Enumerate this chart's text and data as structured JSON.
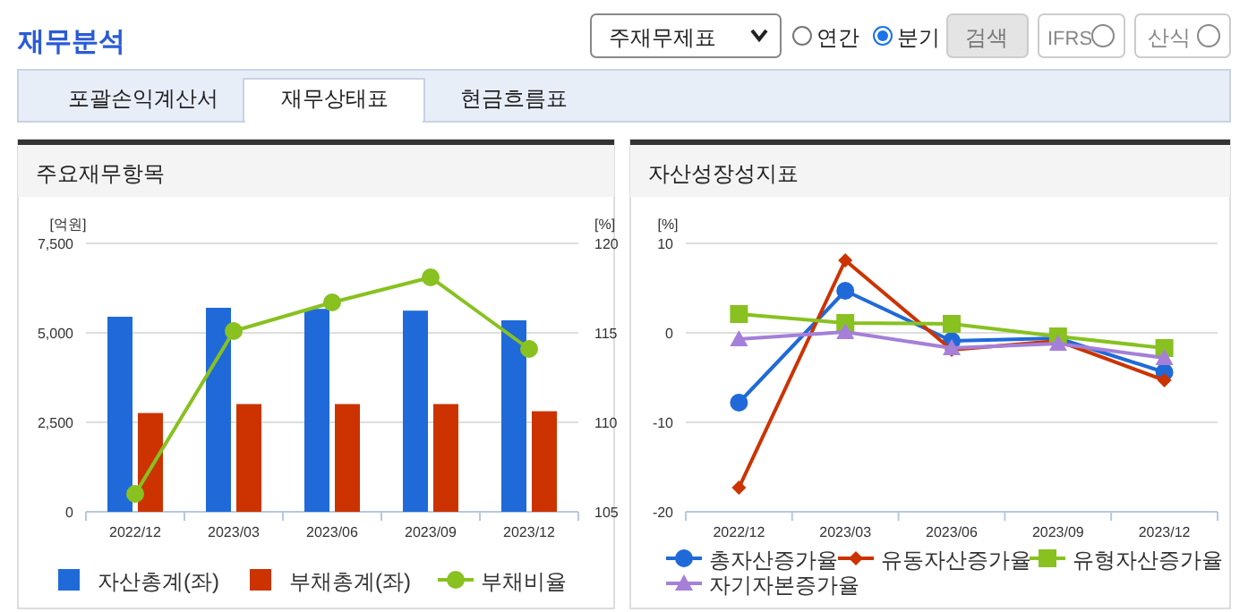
{
  "chart_data": [
    {
      "type": "bar",
      "title": "주요재무항목",
      "ylabel": "[억원]",
      "y2label": "[%]",
      "annotations": [
        "재무분석",
        "주재무제표",
        "연간",
        "분기",
        "검색",
        "IFRS",
        "산식",
        "포괄손익계산서",
        "재무상태표",
        "현금흐름표"
      ],
      "categories": [
        "2022/12",
        "2023/03",
        "2023/06",
        "2023/09",
        "2023/12"
      ],
      "series": [
        {
          "name": "자산총계(좌)",
          "color": "#1f6ad8",
          "values": [
            5450,
            5700,
            5670,
            5620,
            5350
          ]
        },
        {
          "name": "부채총계(좌)",
          "color": "#cc3300",
          "values": [
            2760,
            3010,
            3010,
            3010,
            2810
          ]
        },
        {
          "name": "부채비율",
          "type": "line",
          "axis": "y2",
          "color": "#88c120",
          "marker": "circle",
          "values": [
            106.0,
            115.1,
            116.7,
            118.1,
            114.1
          ]
        }
      ],
      "ylim": [
        0,
        7500
      ],
      "yticks": [
        0,
        {
          "value": 2500,
          "label": "2,500"
        },
        {
          "value": 5000,
          "label": "5,000"
        },
        {
          "value": 7500,
          "label": "7,500"
        }
      ],
      "y2lim": [
        105,
        120
      ],
      "y2ticks": [
        105,
        110,
        115,
        120
      ],
      "grid": "y",
      "legend": "bottom"
    },
    {
      "type": "line",
      "title": "자산성장성지표",
      "ylabel": "[%]",
      "categories": [
        "2022/12",
        "2023/03",
        "2023/06",
        "2023/09",
        "2023/12"
      ],
      "series": [
        {
          "name": "총자산증가율",
          "color": "#1f6ad8",
          "marker": "circle",
          "values": [
            -7.8,
            4.7,
            -0.9,
            -0.6,
            -4.4
          ]
        },
        {
          "name": "유동자산증가율",
          "color": "#cc3300",
          "marker": "diamond",
          "values": [
            -17.3,
            8.1,
            -1.9,
            -0.9,
            -5.3
          ]
        },
        {
          "name": "유형자산증가율",
          "color": "#88c120",
          "marker": "square",
          "values": [
            2.1,
            1.1,
            1.0,
            -0.4,
            -1.7
          ]
        },
        {
          "name": "자기자본증가율",
          "color": "#a57fd8",
          "marker": "triangle",
          "values": [
            -0.7,
            0.1,
            -1.7,
            -1.2,
            -2.8
          ]
        }
      ],
      "ylim": [
        -20,
        10
      ],
      "yticks": [
        -20,
        -10,
        0,
        10
      ],
      "grid": "y",
      "legend": "bottom"
    }
  ]
}
